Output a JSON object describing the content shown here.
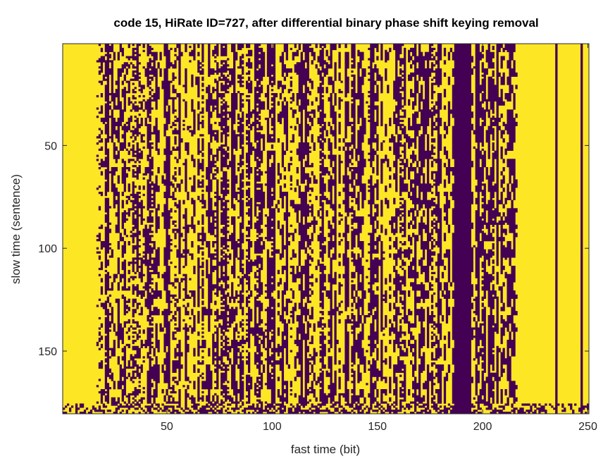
{
  "chart_data": {
    "type": "heatmap",
    "title": "code 15, HiRate ID=727, after differential binary phase shift keying removal",
    "xlabel": "fast time (bit)",
    "ylabel": "slow time (sentence)",
    "xlim": [
      0.5,
      250.5
    ],
    "ylim": [
      0.5,
      180.5
    ],
    "y_reversed": true,
    "xticks": [
      50,
      100,
      150,
      200,
      250
    ],
    "yticks": [
      50,
      100,
      150
    ],
    "value_range": [
      0,
      1
    ],
    "grid": false,
    "legend": "none",
    "colors": {
      "high": "#fde725",
      "low": "#440154"
    },
    "columns": {
      "solid_high_bits": [
        [
          1,
          16
        ],
        [
          217,
          234
        ],
        [
          236,
          246
        ],
        [
          248,
          250
        ]
      ],
      "solid_low_bits": [
        [
          187,
          194
        ],
        [
          235,
          235
        ],
        [
          247,
          247
        ]
      ],
      "noisy_bits": [
        [
          17,
          186
        ],
        [
          195,
          216
        ]
      ]
    },
    "bottom_rows_noisy": [
      176,
      180
    ]
  }
}
